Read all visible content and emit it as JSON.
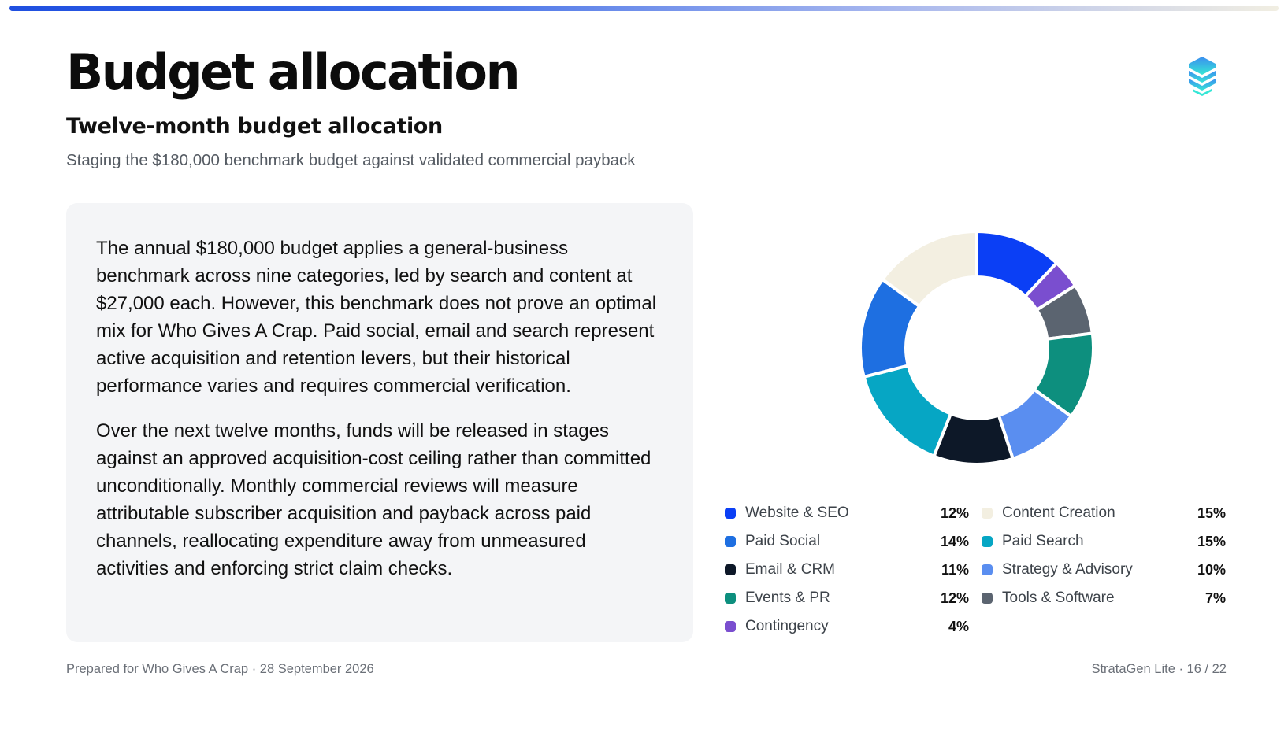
{
  "header": {
    "title": "Budget allocation",
    "subtitle": "Twelve-month budget allocation",
    "description": "Staging the $180,000 benchmark budget against validated commercial payback",
    "logo_icon": "stacked-layers-icon"
  },
  "body": {
    "paragraphs": [
      "The annual $180,000 budget applies a general-business benchmark across nine categories, led by search and content at $27,000 each. However, this benchmark does not prove an optimal mix for Who Gives A Crap. Paid social, email and search represent active acquisition and retention levers, but their historical performance varies and requires commercial verification.",
      "Over the next twelve months, funds will be released in stages against an approved acquisition-cost ceiling rather than committed unconditionally. Monthly commercial reviews will measure attributable subscriber acquisition and payback across paid channels, reallocating expenditure away from unmeasured activities and enforcing strict claim checks."
    ]
  },
  "chart_data": {
    "type": "pie",
    "variant": "donut",
    "unit": "%",
    "legend_position": "bottom",
    "slices": [
      {
        "label": "Website & SEO",
        "value": 12,
        "display": "12%",
        "color": "#0b3ff5"
      },
      {
        "label": "Content Creation",
        "value": 15,
        "display": "15%",
        "color": "#f3efe1"
      },
      {
        "label": "Paid Social",
        "value": 14,
        "display": "14%",
        "color": "#1e6fe1"
      },
      {
        "label": "Paid Search",
        "value": 15,
        "display": "15%",
        "color": "#06a6c4"
      },
      {
        "label": "Email & CRM",
        "value": 11,
        "display": "11%",
        "color": "#0d1828"
      },
      {
        "label": "Strategy & Advisory",
        "value": 10,
        "display": "10%",
        "color": "#5a8ef0"
      },
      {
        "label": "Events & PR",
        "value": 12,
        "display": "12%",
        "color": "#0d8f7e"
      },
      {
        "label": "Tools & Software",
        "value": 7,
        "display": "7%",
        "color": "#5b6470"
      },
      {
        "label": "Contingency",
        "value": 4,
        "display": "4%",
        "color": "#7a4ecf"
      }
    ],
    "draw_order": [
      "Website & SEO",
      "Contingency",
      "Tools & Software",
      "Events & PR",
      "Strategy & Advisory",
      "Email & CRM",
      "Paid Search",
      "Paid Social",
      "Content Creation"
    ]
  },
  "footer": {
    "left": "Prepared for Who Gives A Crap · 28 September 2026",
    "right": "StrataGen Lite · 16 / 22"
  }
}
